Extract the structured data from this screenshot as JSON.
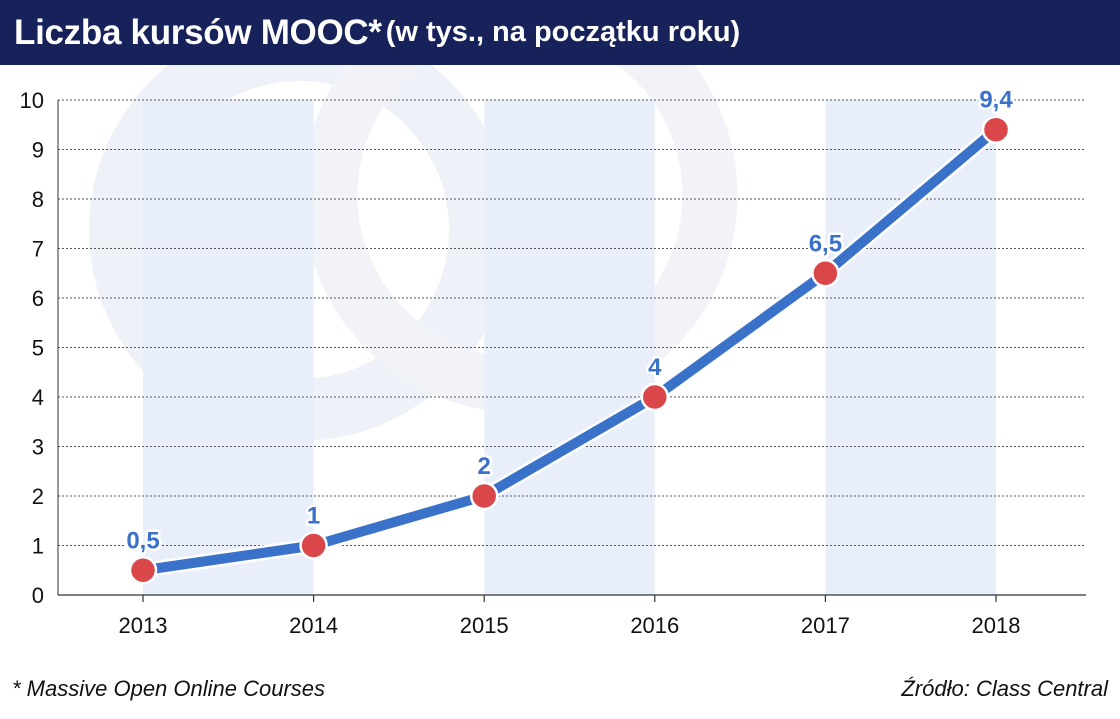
{
  "header": {
    "title": "Liczba kursów MOOC*",
    "subtitle": "(w tys., na początku roku)"
  },
  "footer": {
    "note": "* Massive Open Online Courses",
    "source": "Źródło: Class Central"
  },
  "colors": {
    "header_bg": "#17215a",
    "line": "#3a72c9",
    "marker": "#d9474a",
    "band": "#e9effa"
  },
  "chart_data": {
    "type": "line",
    "title": "Liczba kursów MOOC* (w tys., na początku roku)",
    "categories": [
      "2013",
      "2014",
      "2015",
      "2016",
      "2017",
      "2018"
    ],
    "series": [
      {
        "values": [
          0.5,
          1,
          2,
          4,
          6.5,
          9.4
        ],
        "labels": [
          "0,5",
          "1",
          "2",
          "4",
          "6,5",
          "9,4"
        ]
      }
    ],
    "ylim": [
      0,
      10
    ],
    "yticks": [
      "0",
      "1",
      "2",
      "3",
      "4",
      "5",
      "6",
      "7",
      "8",
      "9",
      "10"
    ],
    "grid": "horizontal dashed",
    "legend": "none"
  }
}
